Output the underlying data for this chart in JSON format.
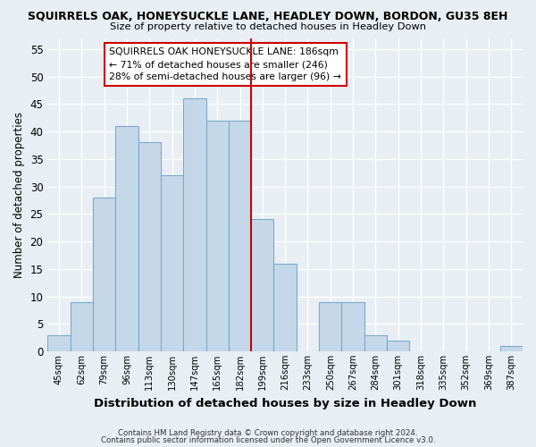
{
  "title": "SQUIRRELS OAK, HONEYSUCKLE LANE, HEADLEY DOWN, BORDON, GU35 8EH",
  "subtitle": "Size of property relative to detached houses in Headley Down",
  "xlabel": "Distribution of detached houses by size in Headley Down",
  "ylabel": "Number of detached properties",
  "bin_labels": [
    "45sqm",
    "62sqm",
    "79sqm",
    "96sqm",
    "113sqm",
    "130sqm",
    "147sqm",
    "165sqm",
    "182sqm",
    "199sqm",
    "216sqm",
    "233sqm",
    "250sqm",
    "267sqm",
    "284sqm",
    "301sqm",
    "318sqm",
    "335sqm",
    "352sqm",
    "369sqm",
    "387sqm"
  ],
  "bar_values": [
    3,
    9,
    28,
    41,
    38,
    32,
    46,
    42,
    42,
    24,
    16,
    0,
    9,
    9,
    3,
    2,
    0,
    0,
    0,
    0,
    1
  ],
  "bar_color": "#c5d8ea",
  "bar_edge_color": "#7aaac8",
  "ylim": [
    0,
    57
  ],
  "yticks": [
    0,
    5,
    10,
    15,
    20,
    25,
    30,
    35,
    40,
    45,
    50,
    55
  ],
  "vline_color": "#cc0000",
  "annotation_title": "SQUIRRELS OAK HONEYSUCKLE LANE: 186sqm",
  "annotation_line1": "← 71% of detached houses are smaller (246)",
  "annotation_line2": "28% of semi-detached houses are larger (96) →",
  "annotation_box_edge": "#cc0000",
  "footer1": "Contains HM Land Registry data © Crown copyright and database right 2024.",
  "footer2": "Contains public sector information licensed under the Open Government Licence v3.0.",
  "background_color": "#e8eef4",
  "grid_color": "#ffffff"
}
